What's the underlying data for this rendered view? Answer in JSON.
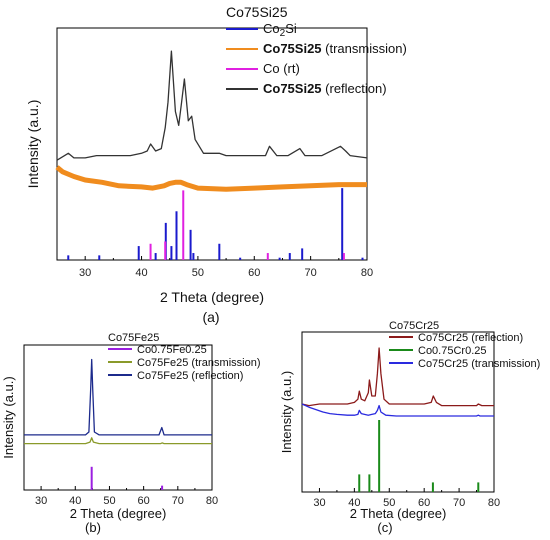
{
  "panels": [
    {
      "id": "a",
      "caption": "(a)",
      "legend_title": "Co75Si25",
      "xlabel": "2 Theta (degree)",
      "ylabel": "Intensity (a.u.)",
      "xticks": [
        "30",
        "40",
        "50",
        "60",
        "70",
        "80"
      ]
    },
    {
      "id": "b",
      "caption": "(b)",
      "legend_title": "Co75Fe25",
      "xlabel": "2 Theta (degree)",
      "ylabel": "Intensity (a.u.)",
      "xticks": [
        "30",
        "40",
        "50",
        "60",
        "70",
        "80"
      ]
    },
    {
      "id": "c",
      "caption": "(c)",
      "legend_title": "Co75Cr25",
      "xlabel": "2 Theta (degree)",
      "ylabel": "Intensity (a.u.)",
      "xticks": [
        "30",
        "40",
        "50",
        "60",
        "70",
        "80"
      ]
    }
  ],
  "chart_data": [
    {
      "type": "line",
      "panel": "a",
      "title": "Co75Si25",
      "xlabel": "2 Theta (degree)",
      "ylabel": "Intensity (a.u.)",
      "xlim": [
        25,
        80
      ],
      "ylim": [
        0,
        100
      ],
      "grid": false,
      "legend_position": "top-left",
      "series": [
        {
          "name": "Co2Si",
          "name_base": "Co",
          "name_sub": "2",
          "name_tail": "Si",
          "style": "sticks",
          "color": "#1a1acd",
          "x": [
            27,
            32.5,
            39.5,
            42.5,
            44.3,
            45.3,
            46.2,
            48.7,
            49.2,
            53.8,
            57.5,
            64.5,
            66.3,
            68.5,
            75.6,
            79.2
          ],
          "y": [
            2,
            2,
            6,
            3,
            16,
            6,
            21,
            13,
            3,
            7,
            1,
            1,
            3,
            5,
            31,
            1
          ]
        },
        {
          "name": "Co75Si25",
          "name_suffix": "(transmission)",
          "style": "line",
          "color": "#f08c1e",
          "x": [
            25,
            26,
            28,
            30,
            33,
            36,
            40,
            42,
            44,
            45,
            46,
            47,
            48,
            50,
            55,
            60,
            65,
            70,
            75,
            80
          ],
          "y": [
            40,
            38,
            36,
            34.5,
            33.5,
            32,
            31.5,
            31,
            32,
            33,
            33.5,
            33.5,
            32.5,
            31,
            30.5,
            31,
            31.5,
            32,
            32.5,
            32.5
          ]
        },
        {
          "name": "Co (rt)",
          "style": "sticks",
          "color": "#e020e0",
          "x": [
            41.6,
            44.2,
            47.4,
            62.4,
            75.9
          ],
          "y": [
            7,
            8,
            30,
            3,
            3
          ]
        },
        {
          "name": "Co75Si25",
          "name_suffix": "(reflection)",
          "style": "line",
          "color": "#333333",
          "x": [
            25,
            27,
            28,
            30,
            32,
            35,
            38,
            40,
            41,
            41.6,
            42.5,
            43.5,
            44.2,
            44.7,
            45.3,
            46,
            46.6,
            47.1,
            47.6,
            48.3,
            48.9,
            49.5,
            51,
            53.8,
            55,
            58,
            62,
            62.7,
            64,
            66,
            68.1,
            69,
            72,
            75.3,
            76.2,
            77,
            80
          ],
          "y": [
            43,
            46,
            44,
            44,
            45,
            45,
            45,
            46,
            47,
            50,
            47,
            48,
            57,
            68,
            90,
            64,
            58,
            68,
            78,
            60,
            62,
            52,
            46,
            46,
            45,
            45,
            45,
            49,
            45,
            45,
            48,
            45,
            45,
            49,
            47,
            45,
            44
          ]
        }
      ]
    },
    {
      "type": "line",
      "panel": "b",
      "title": "Co75Fe25",
      "xlabel": "2 Theta (degree)",
      "ylabel": "Intensity (a.u.)",
      "xlim": [
        25,
        80
      ],
      "ylim": [
        0,
        100
      ],
      "grid": false,
      "legend_position": "top-left",
      "series": [
        {
          "name": "Co0.75Fe0.25",
          "style": "sticks",
          "color": "#9b1fe0",
          "x": [
            44.8,
            65.4
          ],
          "y": [
            16,
            3
          ]
        },
        {
          "name": "Co75Fe25 (transmission)",
          "style": "line",
          "color": "#8a9a2a",
          "x": [
            25,
            30,
            35,
            40,
            43,
            44.3,
            44.8,
            45.3,
            47,
            50,
            55,
            60,
            65,
            65.4,
            66,
            70,
            75,
            80
          ],
          "y": [
            32,
            32,
            32,
            32,
            32,
            33,
            36,
            33,
            32,
            32,
            32,
            32,
            32,
            32.5,
            32,
            32,
            32,
            32
          ]
        },
        {
          "name": "Co75Fe25 (reflection)",
          "style": "line",
          "color": "#1c2a8c",
          "x": [
            25,
            30,
            35,
            40,
            43,
            44,
            44.5,
            44.8,
            45.1,
            45.6,
            47,
            50,
            55,
            60,
            64.5,
            65.3,
            66,
            70,
            75,
            80
          ],
          "y": [
            38,
            38,
            38,
            38,
            38,
            40,
            70,
            90,
            70,
            40,
            38,
            38,
            38,
            38,
            38,
            43,
            38,
            38,
            38,
            38
          ]
        }
      ]
    },
    {
      "type": "line",
      "panel": "c",
      "title": "Co75Cr25",
      "xlabel": "2 Theta (degree)",
      "ylabel": "Intensity (a.u.)",
      "xlim": [
        25,
        80
      ],
      "ylim": [
        0,
        100
      ],
      "grid": false,
      "legend_position": "top-right",
      "series": [
        {
          "name": "Co75Cr25 (reflection)",
          "style": "line",
          "color": "#8b1a1a",
          "x": [
            25,
            27,
            30,
            33,
            36,
            38,
            40,
            41,
            41.4,
            42,
            43,
            44,
            44.3,
            45,
            46,
            46.6,
            47.1,
            47.6,
            48.5,
            50,
            55,
            60,
            62,
            62.6,
            63.5,
            65,
            70,
            75,
            75.5,
            76.5,
            80
          ],
          "y": [
            55,
            54,
            55,
            55,
            55,
            55,
            56,
            58,
            63,
            58,
            57,
            62,
            70,
            60,
            60,
            74,
            90,
            74,
            58,
            55,
            55,
            55,
            56,
            60,
            56,
            54,
            54,
            54,
            55,
            54,
            54
          ]
        },
        {
          "name": "Co0.75Cr0.25",
          "style": "sticks",
          "color": "#1a8a1a",
          "x": [
            41.4,
            44.3,
            47.1,
            62.5,
            75.5
          ],
          "y": [
            11,
            11,
            45,
            6,
            6
          ]
        },
        {
          "name": "Co75Cr25 (transmission)",
          "style": "line",
          "color": "#2a2adf",
          "x": [
            25,
            27,
            29,
            31,
            33,
            35,
            38,
            40,
            41,
            41.4,
            42,
            44,
            45,
            46,
            46.6,
            47.1,
            47.6,
            49,
            52,
            55,
            60,
            65,
            70,
            75,
            75.5,
            76,
            80
          ],
          "y": [
            55,
            53,
            51.5,
            50,
            49,
            48.5,
            48,
            48,
            48.5,
            51,
            49,
            48,
            48.5,
            49,
            51,
            54,
            50,
            48,
            47.5,
            47.5,
            47.5,
            47.5,
            47.5,
            47.5,
            48,
            47.5,
            47.5
          ]
        }
      ]
    }
  ]
}
